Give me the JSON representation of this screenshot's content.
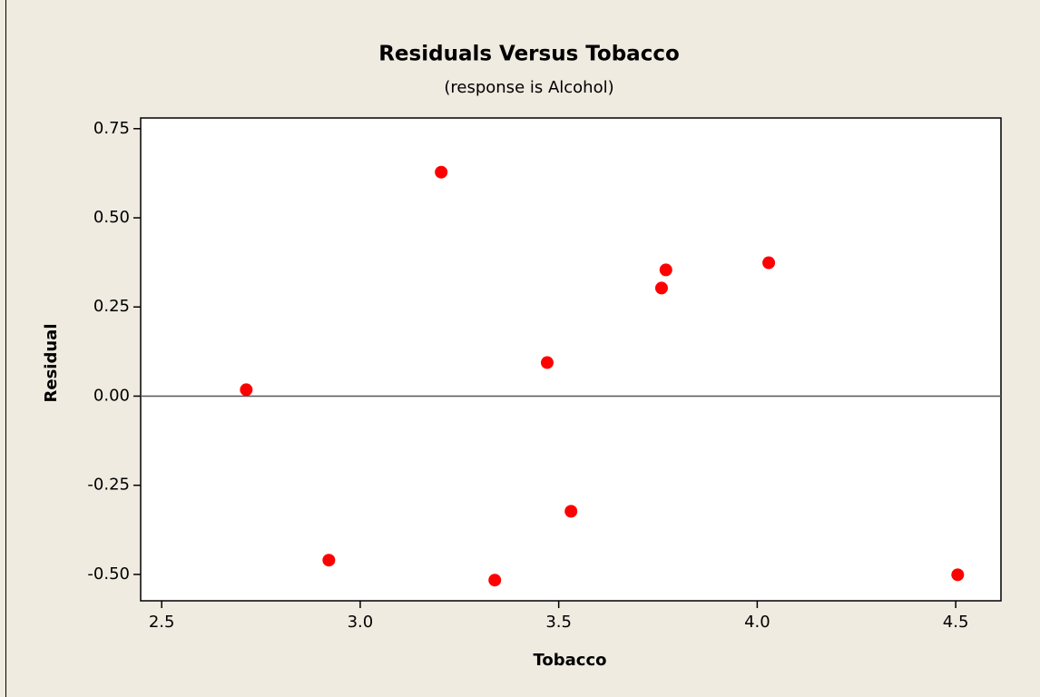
{
  "chart_data": {
    "type": "scatter",
    "title": "Residuals Versus Tobacco",
    "subtitle": "(response is Alcohol)",
    "x_label": "Tobacco",
    "y_label": "Residual",
    "x": [
      2.713,
      2.921,
      3.204,
      3.339,
      3.471,
      3.531,
      3.759,
      3.77,
      4.029,
      4.505
    ],
    "values": [
      0.018,
      -0.46,
      0.628,
      -0.516,
      0.094,
      -0.323,
      0.303,
      0.354,
      0.374,
      -0.501
    ],
    "color": "#ff0000",
    "xlim": [
      2.447,
      4.614
    ],
    "ylim": [
      -0.574,
      0.78
    ],
    "xticks": [
      2.5,
      {
        "value": 3,
        "label": "3.0"
      },
      3.5,
      {
        "value": 4,
        "label": "4.0"
      },
      4.5
    ],
    "yticks": [
      {
        "value": -0.5,
        "label": "-0.50"
      },
      -0.25,
      {
        "value": 0,
        "label": "0.00"
      },
      0.25,
      {
        "value": 0.5,
        "label": "0.50"
      },
      0.75
    ],
    "reference_line": 0
  }
}
